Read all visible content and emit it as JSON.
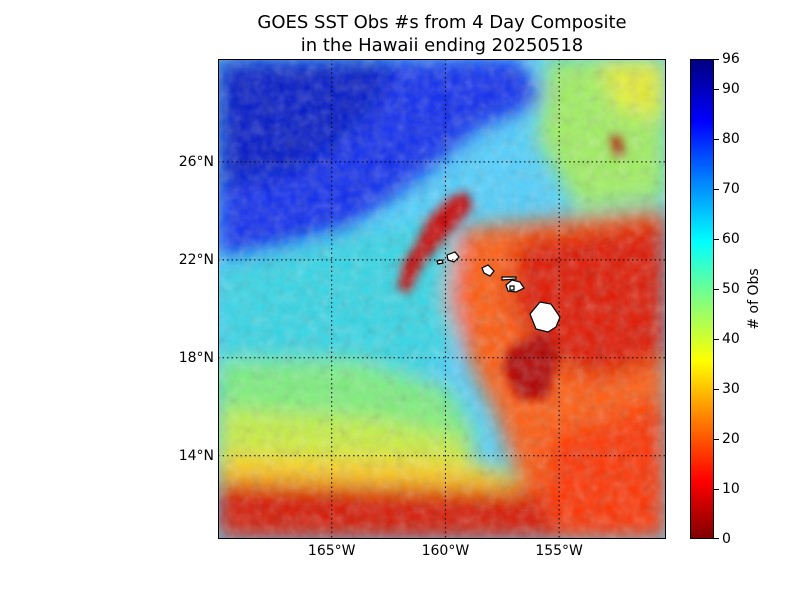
{
  "title_line1": "GOES SST Obs #s from 4 Day Composite",
  "title_line2": "in the Hawaii ending 20250518",
  "map": {
    "lon_range": [
      -170,
      -150.3
    ],
    "lat_range": [
      10.6,
      30.2
    ],
    "lat_ticks": [
      26,
      22,
      18,
      14
    ],
    "lon_ticks": [
      -165,
      -160,
      -155
    ],
    "lat_labels": [
      "26°N",
      "22°N",
      "18°N",
      "14°N"
    ],
    "lon_labels": [
      "165°W",
      "160°W",
      "155°W"
    ],
    "gridlines": "dotted black",
    "land_color": "#ffffff",
    "coastline_color": "#000000"
  },
  "colorbar": {
    "label": "# of Obs",
    "min": 0,
    "max": 96,
    "tick_values": [
      0,
      10,
      20,
      30,
      40,
      50,
      60,
      70,
      80,
      90,
      96
    ],
    "tick_labels": [
      "0",
      "10",
      "20",
      "30",
      "40",
      "50",
      "60",
      "70",
      "80",
      "90",
      "96"
    ],
    "colormap": "jet",
    "colors": [
      "#800000",
      "#ff0000",
      "#ff8000",
      "#ffff00",
      "#80ff80",
      "#00ffff",
      "#0080ff",
      "#0000ff",
      "#000080"
    ]
  }
}
